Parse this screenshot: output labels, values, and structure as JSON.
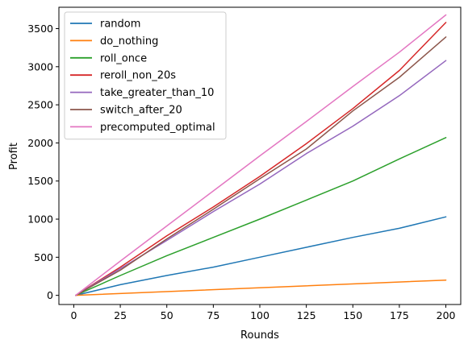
{
  "chart_data": {
    "type": "line",
    "title": "",
    "xlabel": "Rounds",
    "ylabel": "Profit",
    "xlim": [
      -8,
      208
    ],
    "ylim": [
      -120,
      3780
    ],
    "xticks": [
      0,
      25,
      50,
      75,
      100,
      125,
      150,
      175,
      200
    ],
    "yticks": [
      0,
      500,
      1000,
      1500,
      2000,
      2500,
      3000,
      3500
    ],
    "grid": false,
    "legend_position": "top-left",
    "series": [
      {
        "name": "random",
        "color": "#1f77b4",
        "x": [
          1,
          25,
          50,
          75,
          100,
          125,
          150,
          175,
          200
        ],
        "y": [
          0,
          140,
          260,
          370,
          500,
          630,
          760,
          880,
          1030
        ]
      },
      {
        "name": "do_nothing",
        "color": "#ff7f0e",
        "x": [
          1,
          200
        ],
        "y": [
          0,
          200
        ]
      },
      {
        "name": "roll_once",
        "color": "#2ca02c",
        "x": [
          1,
          25,
          50,
          75,
          100,
          125,
          150,
          175,
          200
        ],
        "y": [
          0,
          260,
          520,
          760,
          1000,
          1250,
          1500,
          1790,
          2070
        ]
      },
      {
        "name": "reroll_non_20s",
        "color": "#d62728",
        "x": [
          1,
          25,
          50,
          75,
          100,
          125,
          150,
          175,
          200
        ],
        "y": [
          0,
          370,
          780,
          1160,
          1560,
          1990,
          2450,
          2950,
          3580
        ]
      },
      {
        "name": "take_greater_than_10",
        "color": "#9467bd",
        "x": [
          1,
          25,
          50,
          75,
          100,
          125,
          150,
          175,
          200
        ],
        "y": [
          0,
          350,
          720,
          1100,
          1460,
          1860,
          2220,
          2620,
          3080
        ]
      },
      {
        "name": "switch_after_20",
        "color": "#8c564b",
        "x": [
          1,
          25,
          50,
          75,
          100,
          125,
          150,
          175,
          200
        ],
        "y": [
          0,
          330,
          740,
          1130,
          1530,
          1920,
          2420,
          2860,
          3390
        ]
      },
      {
        "name": "precomputed_optimal",
        "color": "#e377c2",
        "x": [
          1,
          25,
          50,
          75,
          100,
          125,
          150,
          175,
          200
        ],
        "y": [
          0,
          450,
          910,
          1370,
          1830,
          2280,
          2740,
          3190,
          3680
        ]
      }
    ]
  }
}
